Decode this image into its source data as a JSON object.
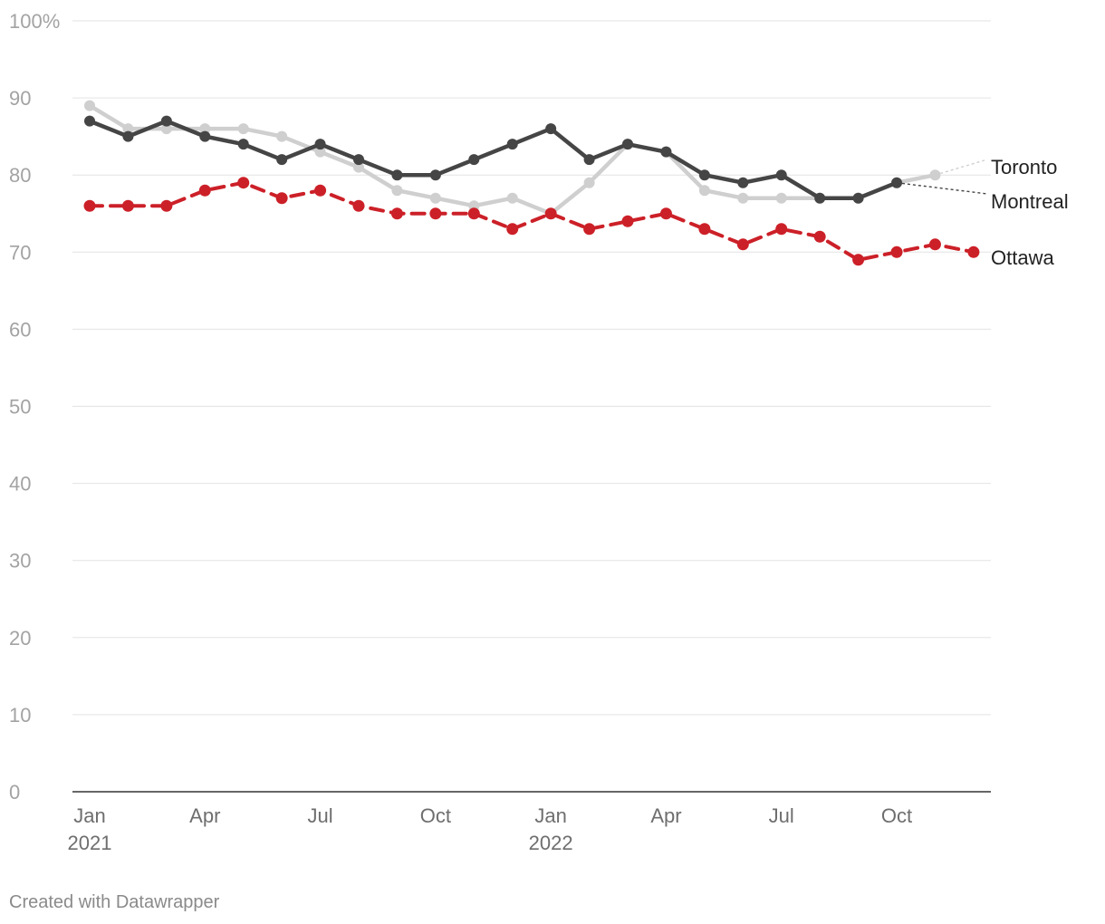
{
  "chart_data": {
    "type": "line",
    "title": "",
    "xlabel": "",
    "ylabel": "",
    "ylim": [
      0,
      100
    ],
    "yticks": [
      {
        "value": 100,
        "label": "100%"
      },
      {
        "value": 90,
        "label": "90"
      },
      {
        "value": 80,
        "label": "80"
      },
      {
        "value": 70,
        "label": "70"
      },
      {
        "value": 60,
        "label": "60"
      },
      {
        "value": 50,
        "label": "50"
      },
      {
        "value": 40,
        "label": "40"
      },
      {
        "value": 30,
        "label": "30"
      },
      {
        "value": 20,
        "label": "20"
      },
      {
        "value": 10,
        "label": "10"
      },
      {
        "value": 0,
        "label": "0"
      }
    ],
    "x": [
      "2021-01",
      "2021-02",
      "2021-03",
      "2021-04",
      "2021-05",
      "2021-06",
      "2021-07",
      "2021-08",
      "2021-09",
      "2021-10",
      "2021-11",
      "2021-12",
      "2022-01",
      "2022-02",
      "2022-03",
      "2022-04",
      "2022-05",
      "2022-06",
      "2022-07",
      "2022-08",
      "2022-09",
      "2022-10",
      "2022-11",
      "2022-12"
    ],
    "xticks": [
      {
        "index": 0,
        "label": "Jan",
        "sublabel": "2021"
      },
      {
        "index": 3,
        "label": "Apr",
        "sublabel": ""
      },
      {
        "index": 6,
        "label": "Jul",
        "sublabel": ""
      },
      {
        "index": 9,
        "label": "Oct",
        "sublabel": ""
      },
      {
        "index": 12,
        "label": "Jan",
        "sublabel": "2022"
      },
      {
        "index": 15,
        "label": "Apr",
        "sublabel": ""
      },
      {
        "index": 18,
        "label": "Jul",
        "sublabel": ""
      },
      {
        "index": 21,
        "label": "Oct",
        "sublabel": ""
      }
    ],
    "series": [
      {
        "name": "Toronto",
        "color": "#cfcfcf",
        "dashed": false,
        "values": [
          89,
          86,
          86,
          86,
          86,
          85,
          83,
          81,
          78,
          77,
          76,
          77,
          75,
          79,
          84,
          83,
          78,
          77,
          77,
          77,
          77,
          79,
          80,
          null
        ]
      },
      {
        "name": "Montreal",
        "color": "#454545",
        "dashed": false,
        "values": [
          87,
          85,
          87,
          85,
          84,
          82,
          84,
          82,
          80,
          80,
          82,
          84,
          86,
          82,
          84,
          83,
          80,
          79,
          80,
          77,
          77,
          79,
          null,
          null
        ]
      },
      {
        "name": "Ottawa",
        "color": "#cc2028",
        "dashed": true,
        "values": [
          76,
          76,
          76,
          78,
          79,
          77,
          78,
          76,
          75,
          75,
          75,
          73,
          75,
          73,
          74,
          75,
          73,
          71,
          73,
          72,
          69,
          70,
          71,
          70
        ]
      }
    ]
  },
  "footer": {
    "credit": "Created with Datawrapper"
  }
}
